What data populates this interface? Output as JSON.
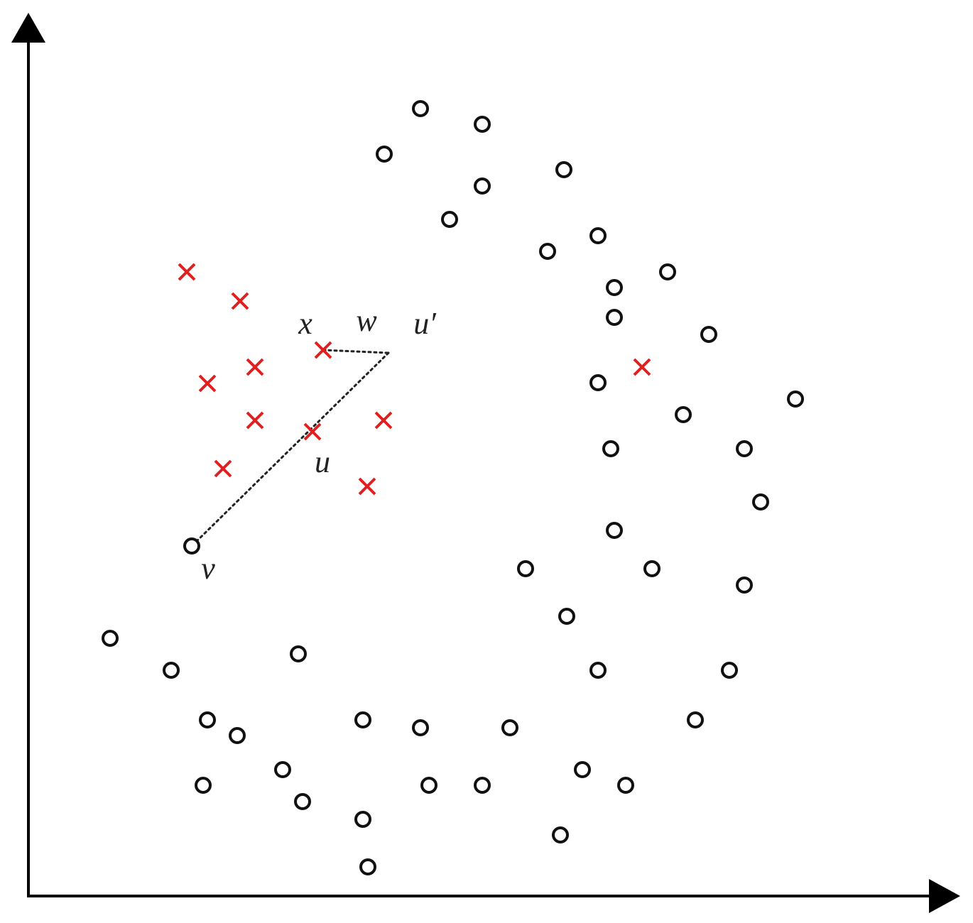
{
  "chart_data": {
    "type": "scatter",
    "title": "",
    "xlabel": "",
    "ylabel": "",
    "colors": {
      "minority": "#e02020",
      "majority": "#111111",
      "axis": "#000000",
      "connector": "#222222"
    },
    "minority_points": [
      [
        263,
        383
      ],
      [
        338,
        424
      ],
      [
        455,
        493
      ],
      [
        359,
        517
      ],
      [
        292,
        540
      ],
      [
        359,
        592
      ],
      [
        440,
        608
      ],
      [
        540,
        592
      ],
      [
        314,
        660
      ],
      [
        517,
        685
      ],
      [
        904,
        517
      ]
    ],
    "majority_points": [
      [
        592,
        153
      ],
      [
        679,
        175
      ],
      [
        541,
        217
      ],
      [
        794,
        239
      ],
      [
        679,
        262
      ],
      [
        633,
        309
      ],
      [
        842,
        332
      ],
      [
        771,
        354
      ],
      [
        940,
        383
      ],
      [
        865,
        405
      ],
      [
        865,
        447
      ],
      [
        998,
        471
      ],
      [
        842,
        539
      ],
      [
        1120,
        562
      ],
      [
        962,
        584
      ],
      [
        860,
        632
      ],
      [
        1048,
        632
      ],
      [
        1071,
        707
      ],
      [
        865,
        747
      ],
      [
        270,
        769
      ],
      [
        740,
        801
      ],
      [
        918,
        801
      ],
      [
        1048,
        824
      ],
      [
        798,
        868
      ],
      [
        155,
        899
      ],
      [
        420,
        921
      ],
      [
        241,
        944
      ],
      [
        842,
        944
      ],
      [
        1027,
        944
      ],
      [
        292,
        1014
      ],
      [
        511,
        1014
      ],
      [
        979,
        1014
      ],
      [
        334,
        1036
      ],
      [
        592,
        1025
      ],
      [
        718,
        1025
      ],
      [
        398,
        1084
      ],
      [
        820,
        1084
      ],
      [
        286,
        1106
      ],
      [
        604,
        1106
      ],
      [
        679,
        1106
      ],
      [
        881,
        1106
      ],
      [
        426,
        1129
      ],
      [
        511,
        1154
      ],
      [
        789,
        1176
      ],
      [
        518,
        1221
      ]
    ],
    "connectors": [
      {
        "from": [
          455,
          493
        ],
        "to": [
          547,
          497
        ]
      },
      {
        "from": [
          547,
          497
        ],
        "to": [
          270,
          769
        ]
      }
    ],
    "annotations": [
      {
        "text": "x",
        "at": [
          430,
          470
        ]
      },
      {
        "text": "w",
        "at": [
          516,
          466
        ]
      },
      {
        "text": "u′",
        "at": [
          598,
          470
        ]
      },
      {
        "text": "u",
        "at": [
          454,
          665
        ]
      },
      {
        "text": "v",
        "at": [
          293,
          815
        ]
      }
    ]
  }
}
